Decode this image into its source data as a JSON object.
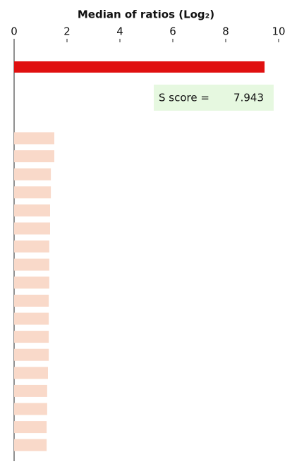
{
  "chart_data": {
    "type": "bar",
    "orientation": "horizontal",
    "title": "Median of ratios (Log₂)",
    "categories": [
      null,
      null,
      null,
      null,
      null,
      null,
      null,
      null,
      null,
      null,
      null,
      null,
      null,
      null,
      null,
      null,
      null,
      null,
      null
    ],
    "values": [
      9.47,
      1.52,
      1.52,
      1.39,
      1.39,
      1.36,
      1.36,
      1.33,
      1.33,
      1.33,
      1.31,
      1.31,
      1.31,
      1.31,
      1.28,
      1.25,
      1.25,
      1.23,
      1.23
    ],
    "colors": [
      "#e01010",
      "#f9d9c9",
      "#f9d9c9",
      "#f9d9c9",
      "#f9d9c9",
      "#f9d9c9",
      "#f9d9c9",
      "#f9d9c9",
      "#f9d9c9",
      "#f9d9c9",
      "#f9d9c9",
      "#f9d9c9",
      "#f9d9c9",
      "#f9d9c9",
      "#f9d9c9",
      "#f9d9c9",
      "#f9d9c9",
      "#f9d9c9",
      "#f9d9c9"
    ],
    "xlim": [
      0,
      10
    ],
    "xticks": [
      0,
      2,
      4,
      6,
      8,
      10
    ],
    "annotation": {
      "label": "S score =",
      "value": 7.943
    }
  }
}
